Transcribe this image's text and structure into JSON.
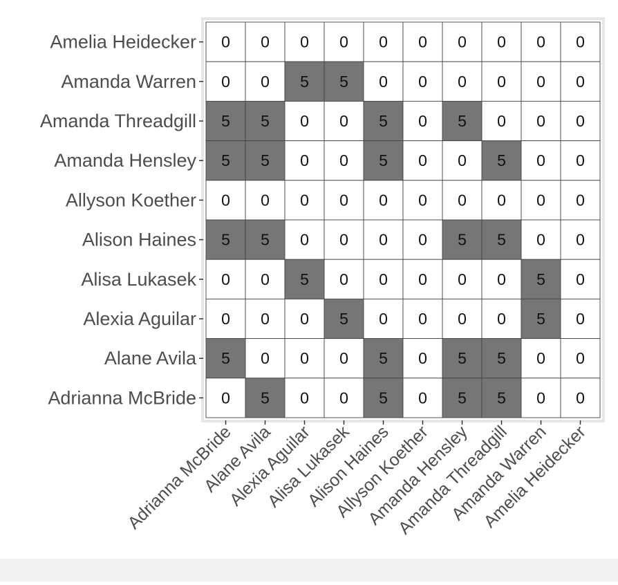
{
  "chart_data": {
    "type": "heatmap",
    "title": "",
    "xlabel": "",
    "ylabel": "",
    "x_categories": [
      "Adrianna McBride",
      "Alane Avila",
      "Alexia Aguilar",
      "Alisa Lukasek",
      "Alison Haines",
      "Allyson Koether",
      "Amanda Hensley",
      "Amanda Threadgill",
      "Amanda Warren",
      "Amelia Heidecker"
    ],
    "y_categories_top_to_bottom": [
      "Amelia Heidecker",
      "Amanda Warren",
      "Amanda Threadgill",
      "Amanda Hensley",
      "Allyson Koether",
      "Alison Haines",
      "Alisa Lukasek",
      "Alexia Aguilar",
      "Alane Avila",
      "Adrianna McBride"
    ],
    "values": [
      [
        0,
        0,
        0,
        0,
        0,
        0,
        0,
        0,
        0,
        0
      ],
      [
        0,
        0,
        5,
        5,
        0,
        0,
        0,
        0,
        0,
        0
      ],
      [
        5,
        5,
        0,
        0,
        5,
        0,
        5,
        0,
        0,
        0
      ],
      [
        5,
        5,
        0,
        0,
        5,
        0,
        0,
        5,
        0,
        0
      ],
      [
        0,
        0,
        0,
        0,
        0,
        0,
        0,
        0,
        0,
        0
      ],
      [
        5,
        5,
        0,
        0,
        0,
        0,
        5,
        5,
        0,
        0
      ],
      [
        0,
        0,
        5,
        0,
        0,
        0,
        0,
        0,
        5,
        0
      ],
      [
        0,
        0,
        0,
        5,
        0,
        0,
        0,
        0,
        5,
        0
      ],
      [
        5,
        0,
        0,
        0,
        5,
        0,
        5,
        5,
        0,
        0
      ],
      [
        0,
        5,
        0,
        0,
        5,
        0,
        5,
        5,
        0,
        0
      ]
    ],
    "grid": true,
    "legend": "none",
    "colors": {
      "zero": "#ffffff",
      "nonzero": "#767676",
      "cell_border": "#444444",
      "panel_border": "#e6e6e6",
      "cell_text": "#111111",
      "tick_label": "#4d4d4d",
      "tick_mark": "#333333"
    }
  }
}
